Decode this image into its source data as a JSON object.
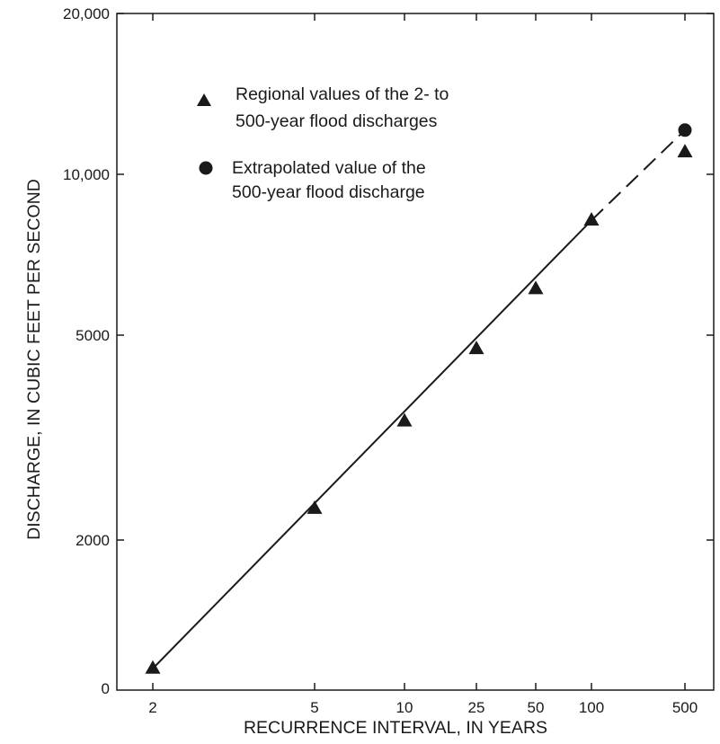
{
  "chart_data": {
    "type": "scatter",
    "title": "",
    "xlabel": "RECURRENCE INTERVAL, IN YEARS",
    "ylabel": "DISCHARGE, IN CUBIC FEET PER SECOND",
    "x_tick_labels": [
      "2",
      "5",
      "10",
      "25",
      "50",
      "100",
      "500"
    ],
    "y_tick_labels": [
      "0",
      "2000",
      "5000",
      "10,000",
      "20,000"
    ],
    "grid": false,
    "legend_position": "top-left",
    "series": [
      {
        "name": "Regional values of the 2- to 500-year flood discharges",
        "marker": "triangle",
        "points": [
          {
            "x": 2,
            "y": 500
          },
          {
            "x": 5,
            "y": 2300
          },
          {
            "x": 10,
            "y": 3400
          },
          {
            "x": 25,
            "y": 4700
          },
          {
            "x": 50,
            "y": 6100
          },
          {
            "x": 100,
            "y": 8200
          },
          {
            "x": 500,
            "y": 11000
          }
        ]
      },
      {
        "name": "Extrapolated value of the 500-year flood discharge",
        "marker": "circle",
        "points": [
          {
            "x": 500,
            "y": 12100
          }
        ]
      }
    ],
    "fit_line": {
      "from": {
        "x": 2,
        "y": 500
      },
      "to": {
        "x": 100,
        "y": 8200
      },
      "style": "solid"
    },
    "extrapolation_line": {
      "from": {
        "x": 100,
        "y": 8200
      },
      "to": {
        "x": 500,
        "y": 12100
      },
      "style": "dashed"
    },
    "legend": {
      "triangle_lines": [
        "Regional values of the 2- to",
        "500-year flood discharges"
      ],
      "circle_lines": [
        "Extrapolated value of the",
        "500-year flood discharge"
      ]
    },
    "colors": {
      "ink": "#1a1a1a",
      "background": "#ffffff"
    }
  }
}
